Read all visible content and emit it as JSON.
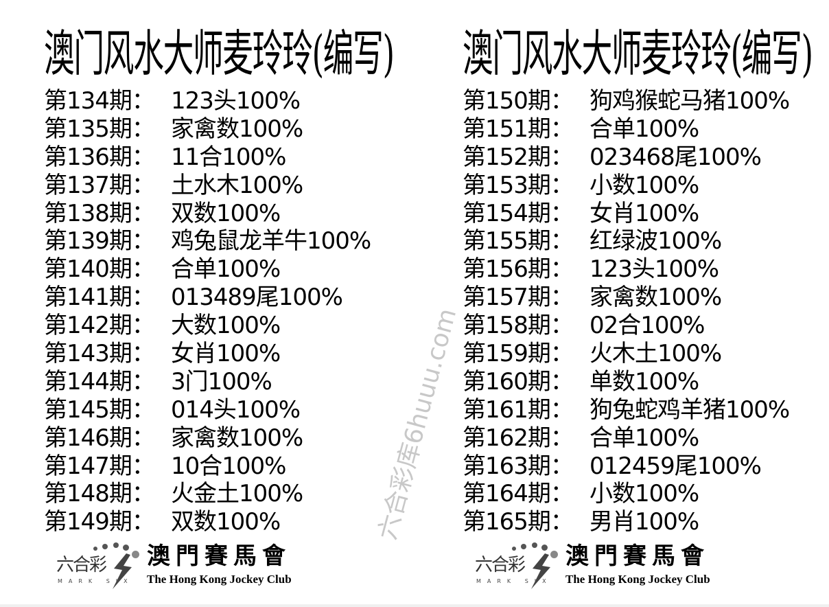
{
  "watermark": "六合彩库6huuu.com",
  "columns": [
    {
      "title": "澳门风水大师麦玲玲(编写)",
      "rows": [
        {
          "period": "第134期：",
          "value": "123头100%"
        },
        {
          "period": "第135期：",
          "value": "家禽数100%"
        },
        {
          "period": "第136期：",
          "value": "11合100%"
        },
        {
          "period": "第137期：",
          "value": "土水木100%"
        },
        {
          "period": "第138期：",
          "value": "双数100%"
        },
        {
          "period": "第139期：",
          "value": "鸡兔鼠龙羊牛100%"
        },
        {
          "period": "第140期：",
          "value": "合单100%"
        },
        {
          "period": "第141期：",
          "value": "013489尾100%"
        },
        {
          "period": "第142期：",
          "value": "大数100%"
        },
        {
          "period": "第143期：",
          "value": "女肖100%"
        },
        {
          "period": "第144期：",
          "value": "3门100%"
        },
        {
          "period": "第145期：",
          "value": "014头100%"
        },
        {
          "period": "第146期：",
          "value": "家禽数100%"
        },
        {
          "period": "第147期：",
          "value": "10合100%"
        },
        {
          "period": "第148期：",
          "value": "火金土100%"
        },
        {
          "period": "第149期：",
          "value": "双数100%"
        }
      ],
      "logo": {
        "lhc": "六合彩",
        "mark": "MARK SIX",
        "cn": "澳門賽馬會",
        "en": "The Hong Kong Jockey Club"
      }
    },
    {
      "title": "澳门风水大师麦玲玲(编写)",
      "rows": [
        {
          "period": "第150期：",
          "value": "狗鸡猴蛇马猪100%"
        },
        {
          "period": "第151期：",
          "value": "合单100%"
        },
        {
          "period": "第152期：",
          "value": "023468尾100%"
        },
        {
          "period": "第153期：",
          "value": "小数100%"
        },
        {
          "period": "第154期：",
          "value": "女肖100%"
        },
        {
          "period": "第155期：",
          "value": "红绿波100%"
        },
        {
          "period": "第156期：",
          "value": "123头100%"
        },
        {
          "period": "第157期：",
          "value": "家禽数100%"
        },
        {
          "period": "第158期：",
          "value": "02合100%"
        },
        {
          "period": "第159期：",
          "value": "火木土100%"
        },
        {
          "period": "第160期：",
          "value": "单数100%"
        },
        {
          "period": "第161期：",
          "value": "狗兔蛇鸡羊猪100%"
        },
        {
          "period": "第162期：",
          "value": "合单100%"
        },
        {
          "period": "第163期：",
          "value": "012459尾100%"
        },
        {
          "period": "第164期：",
          "value": "小数100%"
        },
        {
          "period": "第165期：",
          "value": "男肖100%"
        }
      ],
      "logo": {
        "lhc": "六合彩",
        "mark": "MARK SIX",
        "cn": "澳門賽馬會",
        "en": "The Hong Kong Jockey Club"
      }
    }
  ]
}
